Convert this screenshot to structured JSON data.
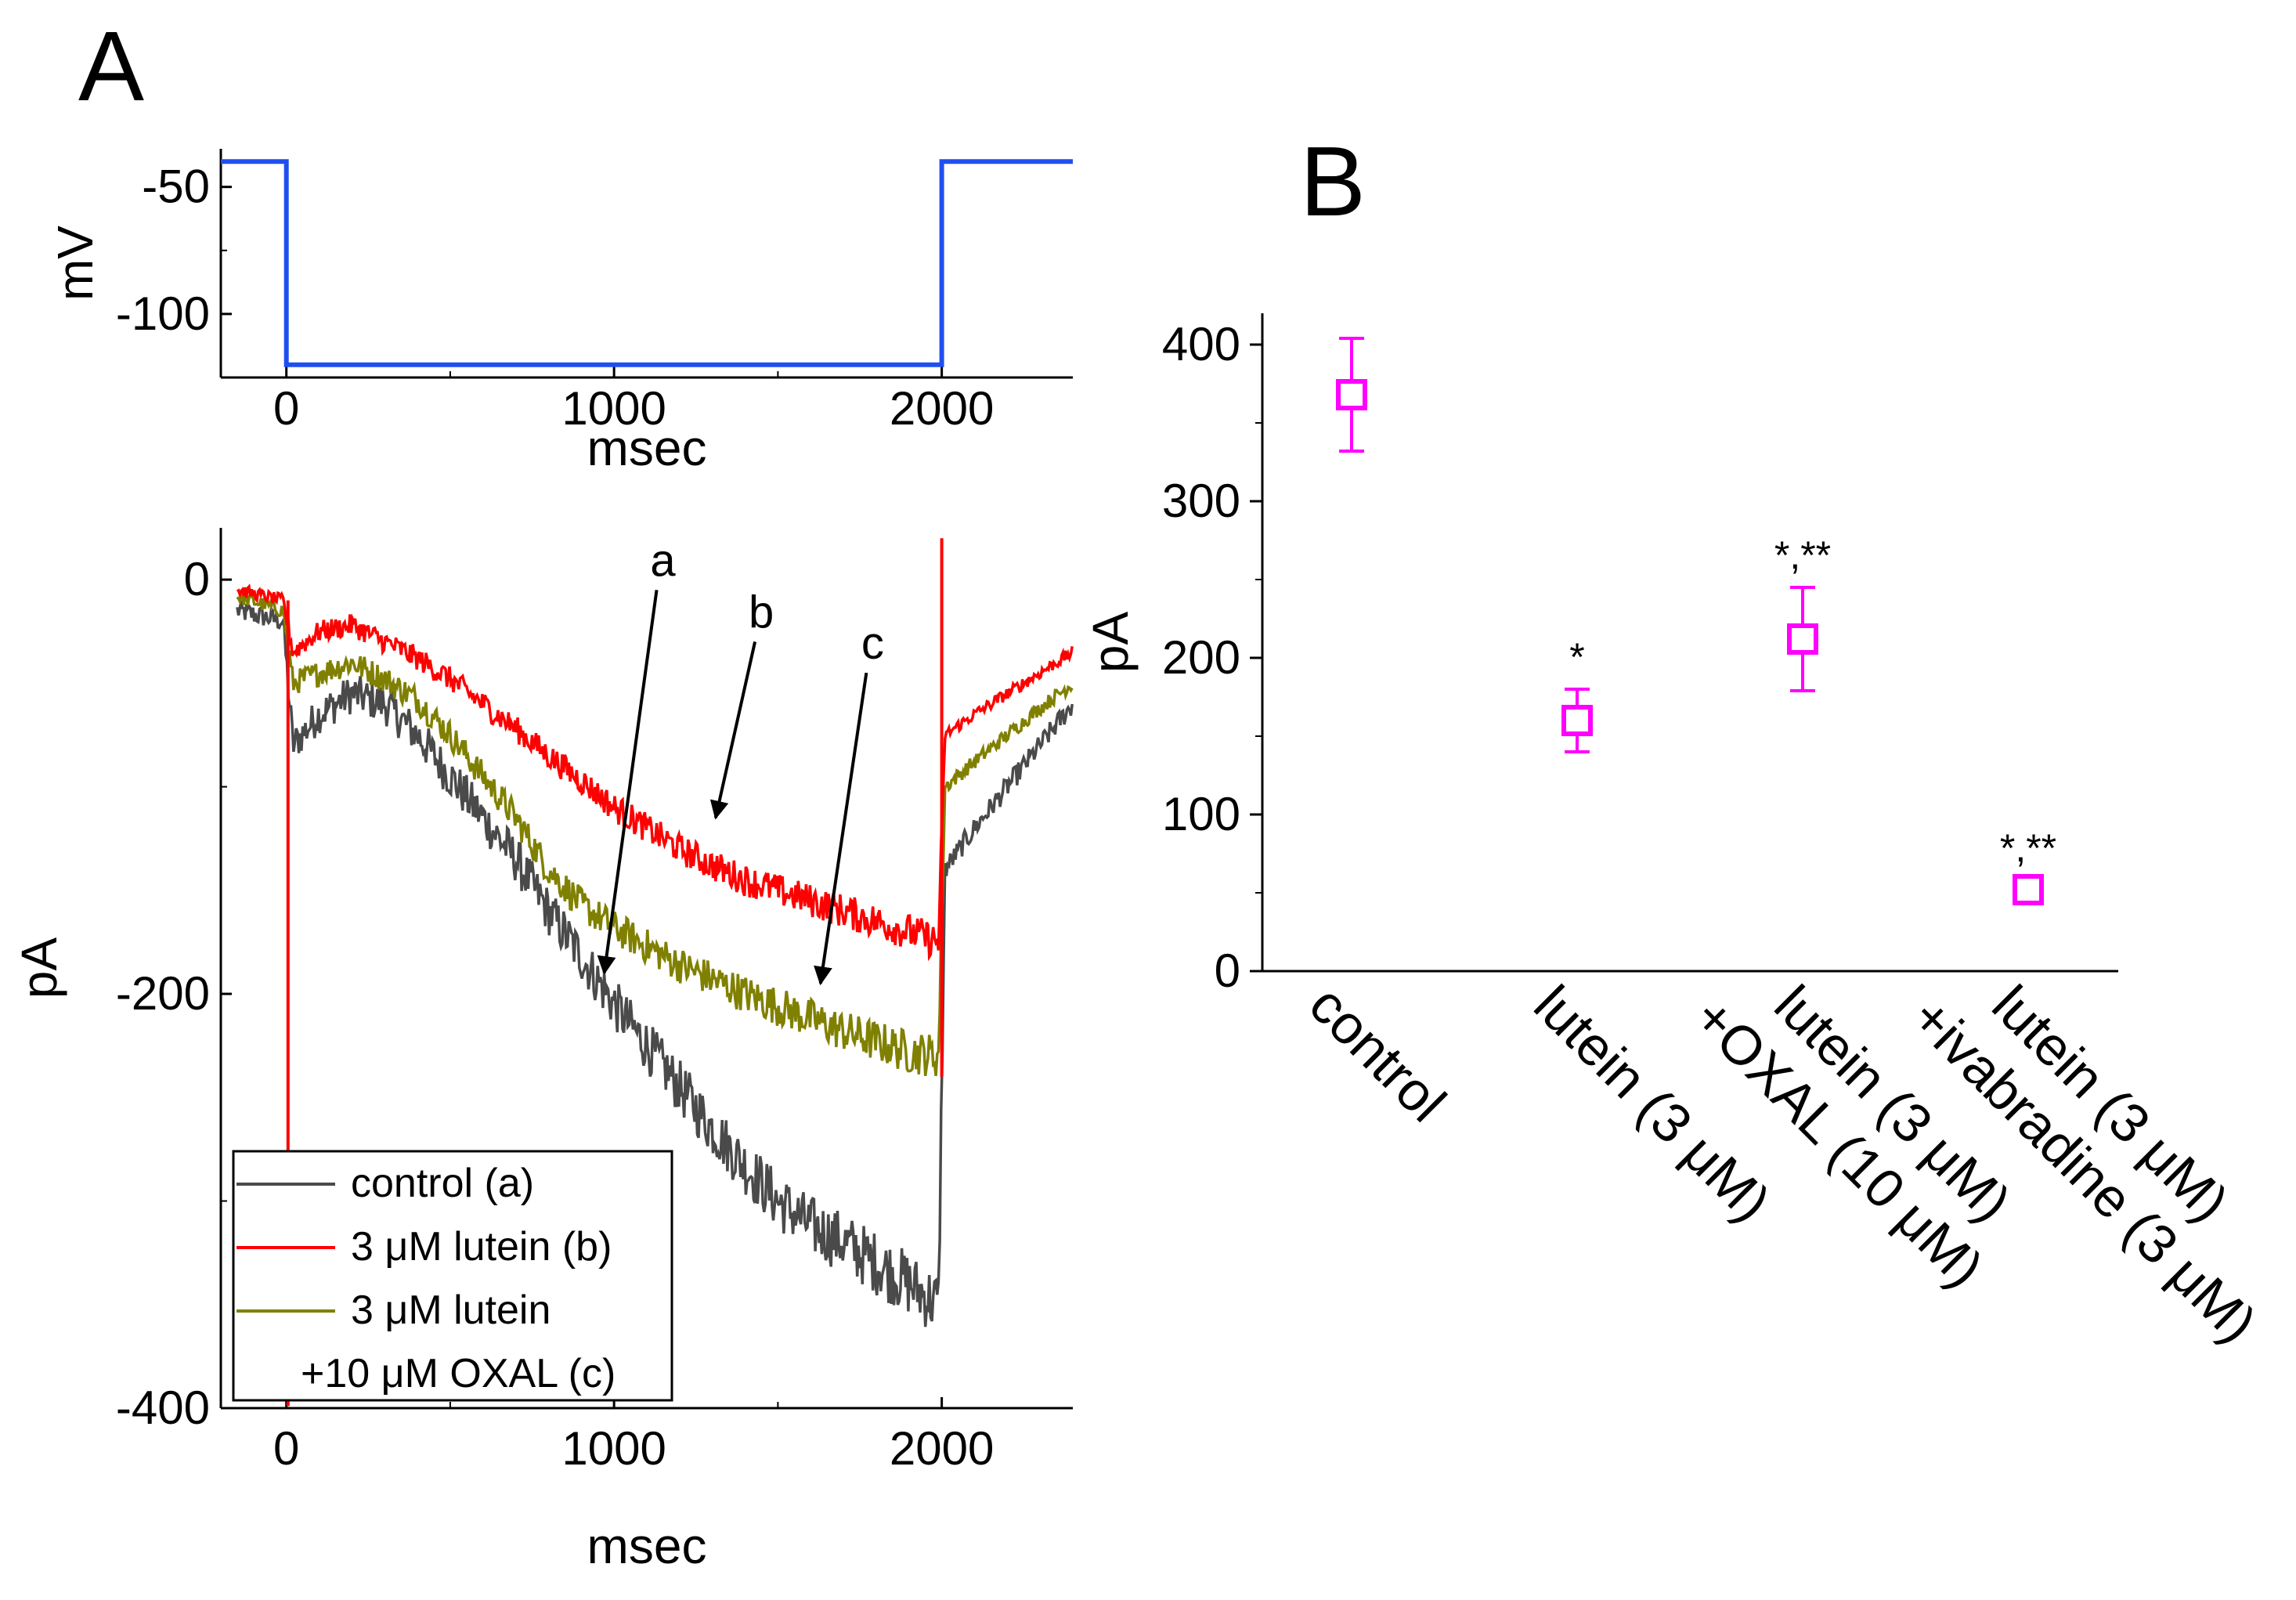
{
  "figure": {
    "panel_a_label": "A",
    "panel_b_label": "B"
  },
  "colors": {
    "voltage": "#1f4ff0",
    "control": "#4a4a4a",
    "lutein": "#ff0000",
    "lutein_oxal": "#808000",
    "marker": "#ff00ff",
    "axis": "#000000"
  },
  "chart_data": [
    {
      "id": "A-voltage",
      "type": "line",
      "title": "",
      "xlabel": "msec",
      "ylabel": "mV",
      "xlim": [
        -200,
        2400
      ],
      "ylim": [
        -125,
        -35
      ],
      "xticks": [
        0,
        1000,
        2000
      ],
      "xtick_labels": [
        "0",
        "1000",
        "2000"
      ],
      "yticks": [
        -50,
        -100
      ],
      "ytick_labels": [
        "-50",
        "-100"
      ],
      "series": [
        {
          "name": "voltage protocol",
          "color_key": "voltage",
          "x": [
            -200,
            0,
            0,
            2000,
            2000,
            2400
          ],
          "y": [
            -40,
            -40,
            -120,
            -120,
            -40,
            -40
          ]
        }
      ]
    },
    {
      "id": "A-current",
      "type": "line",
      "title": "",
      "xlabel": "msec",
      "ylabel": "pA",
      "xlim": [
        -200,
        2400
      ],
      "ylim": [
        -400,
        25
      ],
      "xticks": [
        0,
        1000,
        2000
      ],
      "xtick_labels": [
        "0",
        "1000",
        "2000"
      ],
      "yticks": [
        0,
        -200,
        -400
      ],
      "ytick_labels": [
        "0",
        "-200",
        "-400"
      ],
      "series": [
        {
          "name": "control (a)",
          "color_key": "control",
          "x": [
            -150,
            -10,
            20,
            100,
            200,
            300,
            400,
            500,
            600,
            700,
            800,
            900,
            1000,
            1100,
            1200,
            1300,
            1400,
            1500,
            1600,
            1700,
            1800,
            1900,
            1990,
            2010,
            2100,
            2200,
            2300,
            2400
          ],
          "y": [
            -15,
            -20,
            -80,
            -65,
            -55,
            -60,
            -75,
            -95,
            -115,
            -135,
            -160,
            -182,
            -205,
            -225,
            -245,
            -265,
            -283,
            -300,
            -312,
            -320,
            -330,
            -340,
            -350,
            -140,
            -120,
            -100,
            -80,
            -60
          ]
        },
        {
          "name": "3 μM lutein (b)",
          "color_key": "lutein",
          "x": [
            -150,
            -10,
            20,
            100,
            200,
            300,
            400,
            500,
            600,
            700,
            800,
            900,
            1000,
            1100,
            1200,
            1300,
            1400,
            1500,
            1600,
            1700,
            1800,
            1900,
            1990,
            2010,
            2100,
            2200,
            2300,
            2400
          ],
          "y": [
            -5,
            -10,
            -35,
            -25,
            -22,
            -30,
            -38,
            -48,
            -60,
            -72,
            -85,
            -97,
            -110,
            -120,
            -130,
            -138,
            -145,
            -150,
            -155,
            -160,
            -165,
            -170,
            -175,
            -75,
            -65,
            -55,
            -45,
            -35
          ]
        },
        {
          "name": "3 μM lutein +10 μM OXAL (c)",
          "color_key": "lutein_oxal",
          "x": [
            -150,
            -10,
            20,
            100,
            200,
            300,
            400,
            500,
            600,
            700,
            800,
            900,
            1000,
            1100,
            1200,
            1300,
            1400,
            1500,
            1600,
            1700,
            1800,
            1900,
            1990,
            2010,
            2100,
            2200,
            2300,
            2400
          ],
          "y": [
            -8,
            -15,
            -50,
            -45,
            -40,
            -48,
            -58,
            -75,
            -95,
            -115,
            -140,
            -157,
            -168,
            -177,
            -186,
            -193,
            -200,
            -206,
            -212,
            -218,
            -223,
            -228,
            -230,
            -100,
            -88,
            -75,
            -62,
            -50
          ]
        }
      ],
      "legend": {
        "placement": "bottom-left",
        "entries": [
          {
            "text": "control (a)",
            "color_key": "control"
          },
          {
            "text": "3 μM lutein (b)",
            "color_key": "lutein"
          },
          {
            "text": "3 μM lutein",
            "color_key": "lutein_oxal"
          },
          {
            "text": "+10 μM OXAL (c)",
            "color_key": null
          }
        ]
      },
      "annotations": [
        {
          "label": "a",
          "from": [
            1130,
            -5
          ],
          "to": [
            970,
            -190
          ]
        },
        {
          "label": "b",
          "from": [
            1430,
            -30
          ],
          "to": [
            1310,
            -115
          ]
        },
        {
          "label": "c",
          "from": [
            1770,
            -45
          ],
          "to": [
            1630,
            -195
          ]
        }
      ]
    },
    {
      "id": "B",
      "type": "scatter",
      "title": "",
      "xlabel": "",
      "ylabel": "pA",
      "ylim": [
        0,
        420
      ],
      "yticks": [
        0,
        100,
        200,
        300,
        400
      ],
      "ytick_labels": [
        "0",
        "100",
        "200",
        "300",
        "400"
      ],
      "categories": [
        "control",
        "lutein (3 μM)",
        "lutein (3 μM)\n+OXAL (10 μM)",
        "lutein (3 μM)\n+ivabradine (3 μM)"
      ],
      "category_lines": [
        [
          "control"
        ],
        [
          "lutein (3 μM)"
        ],
        [
          "lutein (3 μM)",
          "+OXAL (10 μM)"
        ],
        [
          "lutein (3 μM)",
          "+ivabradine (3 μM)"
        ]
      ],
      "values": [
        368,
        160,
        212,
        52
      ],
      "errors": [
        36,
        20,
        33,
        6
      ],
      "significance": [
        "",
        "*",
        "*,**",
        "*,**"
      ]
    }
  ]
}
